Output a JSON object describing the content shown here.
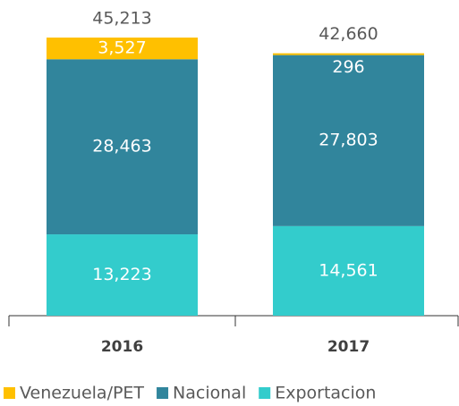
{
  "chart_data": {
    "type": "stacked_bar",
    "categories": [
      "2016",
      "2017"
    ],
    "series": [
      {
        "name": "Exportacion",
        "color": "#33cccc",
        "values": [
          13223,
          14561
        ],
        "value_labels": [
          "13,223",
          "14,561"
        ]
      },
      {
        "name": "Nacional",
        "color": "#31859c",
        "values": [
          28463,
          27803
        ],
        "value_labels": [
          "28,463",
          "27,803"
        ]
      },
      {
        "name": "Venezuela/PET",
        "color": "#ffc000",
        "values": [
          3527,
          296
        ],
        "value_labels": [
          "3,527",
          "296"
        ]
      }
    ],
    "totals": [
      45213,
      42660
    ],
    "total_labels": [
      "45,213",
      "42,660"
    ]
  }
}
